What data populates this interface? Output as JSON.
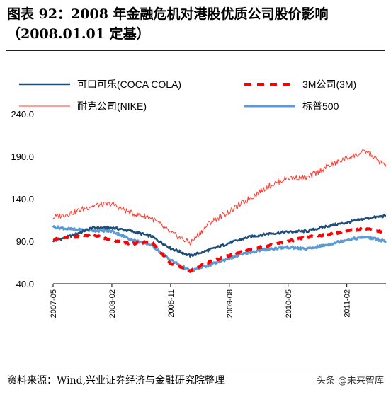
{
  "header": {
    "title_line1": "图表 92：2008 年金融危机对港股优质公司股价影响",
    "title_line2": "（2008.01.01 定基）"
  },
  "footer": {
    "source": "资料来源：Wind,兴业证券经济与金融研究院整理",
    "watermark": "头条 @未来智库"
  },
  "colors": {
    "coca_cola": "#1F4E79",
    "mmm": "#FF0000",
    "nike": "#FF3B30",
    "sp500": "#5B9BD5"
  },
  "chart_data": {
    "type": "line",
    "title": "",
    "xlabel": "",
    "ylabel": "",
    "ylim": [
      40.0,
      240.0
    ],
    "yticks": [
      "240.0",
      "190.0",
      "140.0",
      "90.0",
      "40.0"
    ],
    "xticks": [
      "2007-05",
      "2008-02",
      "2008-11",
      "2009-08",
      "2010-05",
      "2011-02"
    ],
    "legend_position": "top",
    "x": [
      "2007-05",
      "2007-08",
      "2007-11",
      "2008-02",
      "2008-05",
      "2008-08",
      "2008-11",
      "2009-02",
      "2009-05",
      "2009-08",
      "2009-11",
      "2010-02",
      "2010-05",
      "2010-08",
      "2010-11",
      "2011-02",
      "2011-05",
      "2011-08"
    ],
    "series": [
      {
        "name": "可口可乐(COCA COLA)",
        "style": "solid",
        "values": [
          90,
          97,
          106,
          106,
          102,
          96,
          82,
          73,
          80,
          88,
          95,
          99,
          101,
          102,
          108,
          112,
          117,
          120
        ]
      },
      {
        "name": "3M公司(3M)",
        "style": "dashed",
        "values": [
          92,
          95,
          98,
          91,
          87,
          90,
          64,
          55,
          66,
          73,
          80,
          85,
          90,
          95,
          98,
          102,
          105,
          100
        ]
      },
      {
        "name": "耐克公司(NIKE)",
        "style": "solid",
        "values": [
          118,
          124,
          132,
          134,
          123,
          118,
          100,
          88,
          112,
          125,
          140,
          155,
          165,
          165,
          178,
          188,
          196,
          178
        ]
      },
      {
        "name": "标普500",
        "style": "solid",
        "values": [
          107,
          104,
          103,
          102,
          92,
          86,
          68,
          55,
          62,
          70,
          77,
          81,
          83,
          81,
          86,
          92,
          95,
          90
        ]
      }
    ]
  }
}
